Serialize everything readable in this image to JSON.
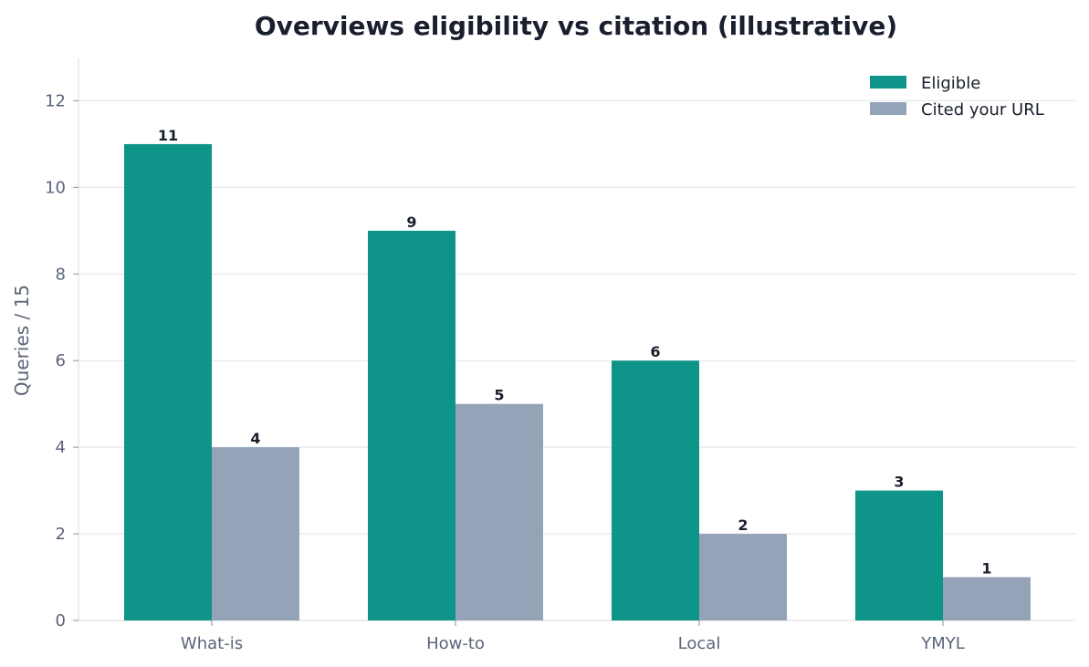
{
  "chart_data": {
    "type": "bar",
    "title": "Overviews eligibility vs citation (illustrative)",
    "xlabel": "",
    "ylabel": "Queries / 15",
    "categories": [
      "What-is",
      "How-to",
      "Local",
      "YMYL"
    ],
    "series": [
      {
        "name": "Eligible",
        "values": [
          11,
          9,
          6,
          3
        ],
        "color": "#0e9488"
      },
      {
        "name": "Cited your URL",
        "values": [
          4,
          5,
          2,
          1
        ],
        "color": "#94a3b8"
      }
    ],
    "ylim": [
      0,
      13
    ],
    "yticks": [
      0,
      2,
      4,
      6,
      8,
      10,
      12
    ],
    "grid": true,
    "legend": "top-right",
    "data_labels": true
  }
}
